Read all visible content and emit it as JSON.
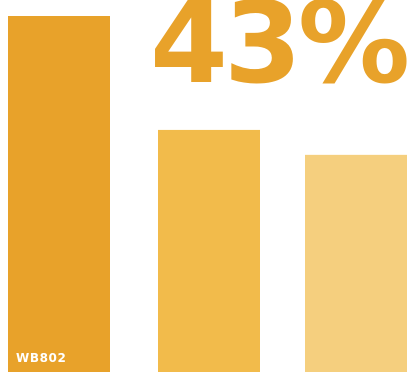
{
  "headline": {
    "value_text": "43%"
  },
  "bar_labels": {
    "first": "WB802"
  },
  "chart_data": {
    "type": "bar",
    "categories": [
      "WB802",
      "",
      ""
    ],
    "values": [
      100,
      68,
      61
    ],
    "colors": [
      "#e8a22a",
      "#f2bb4b",
      "#f5cf7e"
    ],
    "ylim": [
      0,
      100
    ],
    "xlabel": "",
    "ylabel": "",
    "grid": false,
    "legend": "none"
  }
}
